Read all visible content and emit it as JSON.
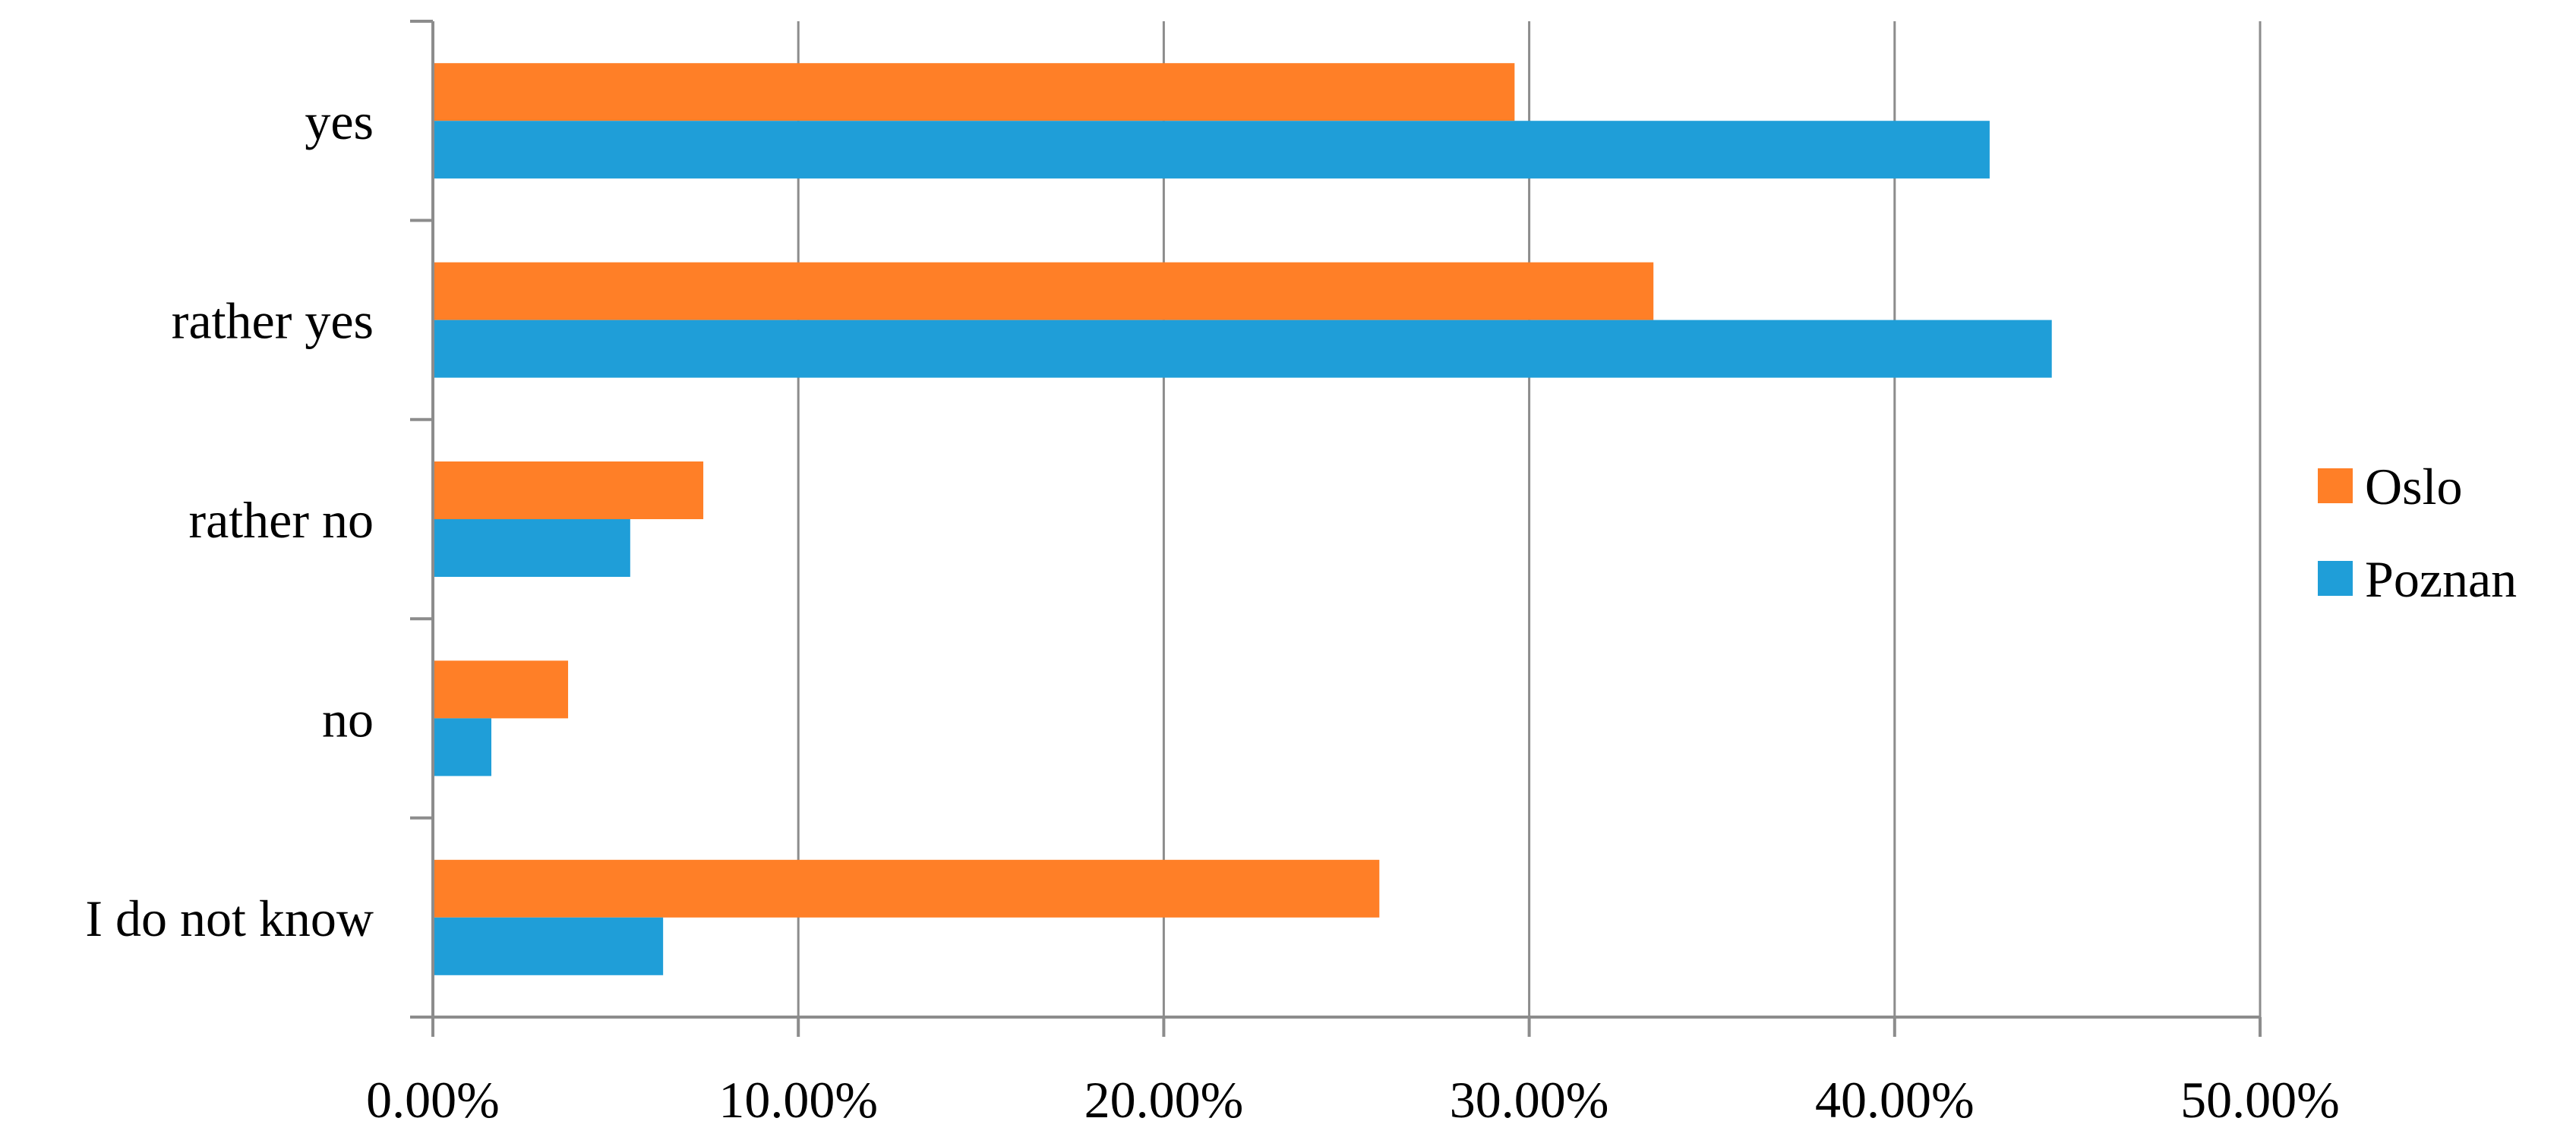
{
  "chart_data": {
    "type": "bar",
    "orientation": "horizontal",
    "title": "",
    "xlabel": "",
    "ylabel": "",
    "categories": [
      "yes",
      "rather yes",
      "rather no",
      "no",
      "I do not know"
    ],
    "series": [
      {
        "name": "Oslo",
        "color": "#FF7F27",
        "values": [
          29.6,
          33.4,
          7.4,
          3.7,
          25.9
        ]
      },
      {
        "name": "Poznan",
        "color": "#1F9ED8",
        "values": [
          42.6,
          44.3,
          5.4,
          1.6,
          6.3
        ]
      }
    ],
    "xlim": [
      0,
      50
    ],
    "x_ticks": [
      0,
      10,
      20,
      30,
      40,
      50
    ],
    "x_tick_labels": [
      "0.00%",
      "10.00%",
      "20.00%",
      "30.00%",
      "40.00%",
      "50.00%"
    ],
    "grid": "vertical",
    "legend": {
      "position": "right",
      "entries": [
        "Oslo",
        "Poznan"
      ]
    }
  }
}
